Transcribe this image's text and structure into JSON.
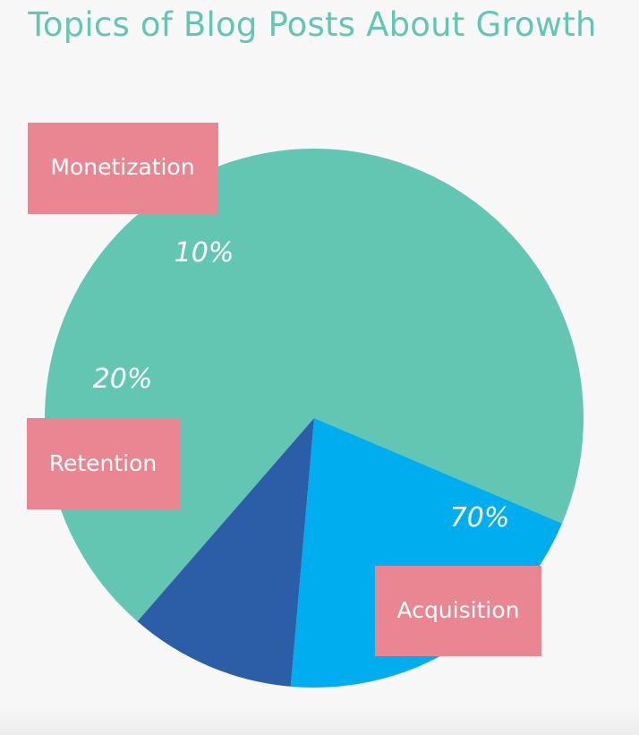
{
  "colors": {
    "background": "#f6f7f6",
    "title": "#63c6b3",
    "tag": "#e98692"
  },
  "chart_data": {
    "type": "pie",
    "title": "Topics of Blog Posts About Growth",
    "slices": [
      {
        "label": "Acquisition",
        "value": 70,
        "value_label": "70%",
        "color": "#63c6b3"
      },
      {
        "label": "Retention",
        "value": 20,
        "value_label": "20%",
        "color": "#00aeef"
      },
      {
        "label": "Monetization",
        "value": 10,
        "value_label": "10%",
        "color": "#2c5ea8"
      }
    ]
  }
}
